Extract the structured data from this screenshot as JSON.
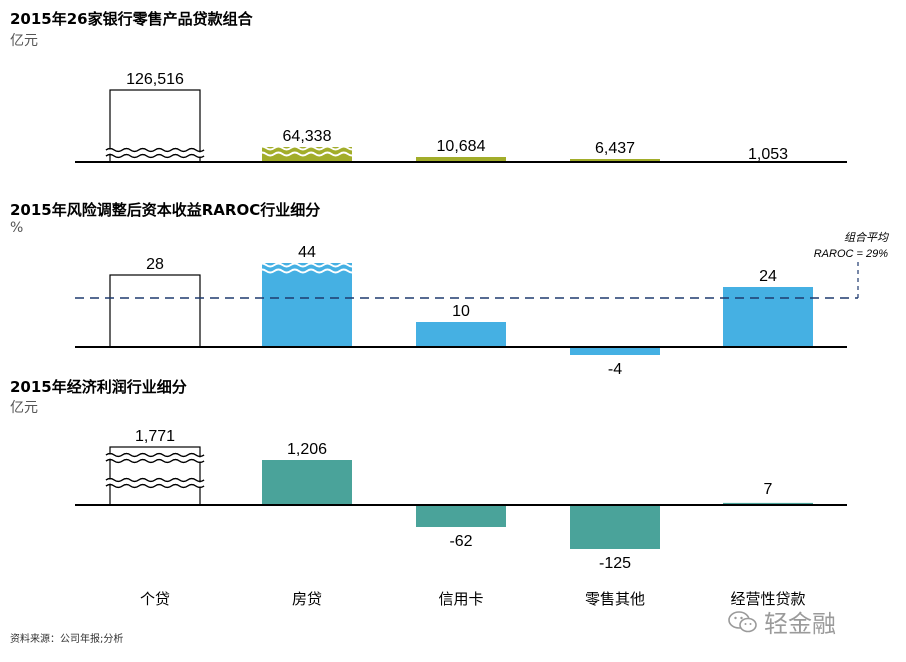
{
  "colors": {
    "olive": "#a2ad2a",
    "blue": "#45b0e3",
    "teal": "#4aa39a",
    "axis": "#000000",
    "avg_line": "#1f3a6e"
  },
  "source": "资料来源：公司年报;分析",
  "watermark": "轻金融",
  "categories": [
    "个贷",
    "房贷",
    "信用卡",
    "零售其他",
    "经营性贷款"
  ],
  "chart_data": [
    {
      "type": "bar",
      "title": "2015年26家银行零售产品贷款组合",
      "unit": "亿元",
      "categories": [
        "个贷",
        "房贷",
        "信用卡",
        "零售其他",
        "经营性贷款"
      ],
      "values": [
        126516,
        64338,
        10684,
        6437,
        1053
      ],
      "value_labels": [
        "126,516",
        "64,338",
        "10,684",
        "6,437",
        "1,053"
      ],
      "axis_breaks": [
        true,
        true,
        false,
        false,
        false
      ],
      "styles": [
        "outline",
        "olive",
        "olive",
        "olive",
        "olive"
      ]
    },
    {
      "type": "bar",
      "title": "2015年风险调整后资本收益RAROC行业细分",
      "unit": "%",
      "categories": [
        "个贷",
        "房贷",
        "信用卡",
        "零售其他",
        "经营性贷款"
      ],
      "values": [
        28,
        44,
        10,
        -4,
        24
      ],
      "value_labels": [
        "28",
        "44",
        "10",
        "-4",
        "24"
      ],
      "axis_breaks": [
        false,
        true,
        false,
        false,
        false
      ],
      "styles": [
        "outline",
        "blue",
        "blue",
        "blue",
        "blue"
      ],
      "reference_line": {
        "value": 29,
        "label_line1": "组合平均",
        "label_line2": "RAROC = 29%"
      }
    },
    {
      "type": "bar",
      "title": "2015年经济利润行业细分",
      "unit": "亿元",
      "categories": [
        "个贷",
        "房贷",
        "信用卡",
        "零售其他",
        "经营性贷款"
      ],
      "values": [
        1771,
        1206,
        -62,
        -125,
        7
      ],
      "value_labels": [
        "1,771",
        "1,206",
        "-62",
        "-125",
        "7"
      ],
      "axis_breaks": [
        true,
        false,
        false,
        false,
        false
      ],
      "styles": [
        "outline",
        "teal",
        "teal",
        "teal",
        "teal"
      ]
    }
  ]
}
